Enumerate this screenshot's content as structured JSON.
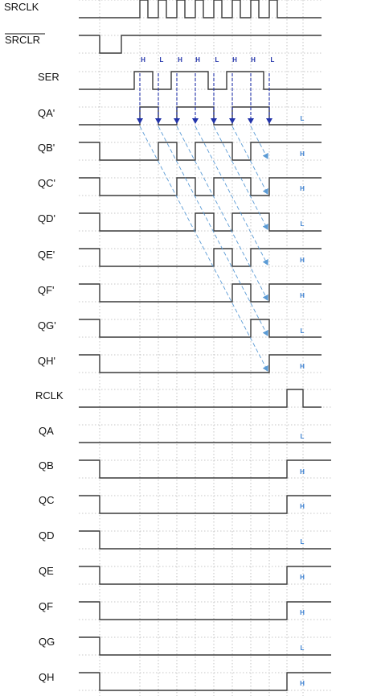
{
  "colors": {
    "waveform": "#3a3a3a",
    "grid": "#b5b5b5",
    "arrow_solid": "#2233aa",
    "arrow_dashed": "#5b9bd5",
    "state_label": "#3a7fd0",
    "top_state_label": "#2233aa"
  },
  "signals": [
    {
      "id": "srclk",
      "label": "SRCLK",
      "overline": false
    },
    {
      "id": "srclr",
      "label": "SRCLR",
      "overline": true
    },
    {
      "id": "ser",
      "label": "SER",
      "overline": false
    },
    {
      "id": "qa_p",
      "label": "QA'",
      "overline": false,
      "final_state": "L"
    },
    {
      "id": "qb_p",
      "label": "QB'",
      "overline": false,
      "final_state": "H"
    },
    {
      "id": "qc_p",
      "label": "QC'",
      "overline": false,
      "final_state": "H"
    },
    {
      "id": "qd_p",
      "label": "QD'",
      "overline": false,
      "final_state": "L"
    },
    {
      "id": "qe_p",
      "label": "QE'",
      "overline": false,
      "final_state": "H"
    },
    {
      "id": "qf_p",
      "label": "QF'",
      "overline": false,
      "final_state": "H"
    },
    {
      "id": "qg_p",
      "label": "QG'",
      "overline": false,
      "final_state": "L"
    },
    {
      "id": "qh_p",
      "label": "QH'",
      "overline": false,
      "final_state": "H"
    },
    {
      "id": "rclk",
      "label": "RCLK",
      "overline": false
    },
    {
      "id": "qa",
      "label": "QA",
      "overline": false,
      "final_state": "L"
    },
    {
      "id": "qb",
      "label": "QB",
      "overline": false,
      "final_state": "H"
    },
    {
      "id": "qc",
      "label": "QC",
      "overline": false,
      "final_state": "H"
    },
    {
      "id": "qd",
      "label": "QD",
      "overline": false,
      "final_state": "L"
    },
    {
      "id": "qe",
      "label": "QE",
      "overline": false,
      "final_state": "H"
    },
    {
      "id": "qf",
      "label": "QF",
      "overline": false,
      "final_state": "H"
    },
    {
      "id": "qg",
      "label": "QG",
      "overline": false,
      "final_state": "L"
    },
    {
      "id": "qh",
      "label": "QH",
      "overline": false,
      "final_state": "H"
    }
  ],
  "ser_sequence": [
    "H",
    "L",
    "H",
    "H",
    "L",
    "H",
    "H",
    "L"
  ]
}
